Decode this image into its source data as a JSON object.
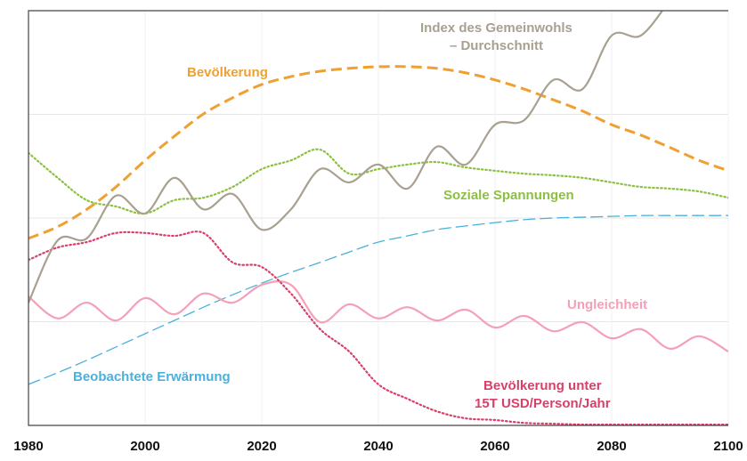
{
  "chart_data": {
    "type": "line",
    "x": [
      1980,
      1985,
      1990,
      1995,
      2000,
      2005,
      2010,
      2015,
      2020,
      2025,
      2030,
      2035,
      2040,
      2045,
      2050,
      2055,
      2060,
      2065,
      2070,
      2075,
      2080,
      2085,
      2090,
      2095,
      2100
    ],
    "xlim": [
      1980,
      2100
    ],
    "xticks": [
      1980,
      2000,
      2020,
      2040,
      2060,
      2080,
      2100
    ],
    "ylim": [
      0,
      100
    ],
    "yticks": [
      25,
      50,
      75
    ],
    "grid": true,
    "series": [
      {
        "name": "Bevölkerung",
        "color": "#f0a030",
        "style": "dashed",
        "values": [
          45.1,
          47.9,
          52.1,
          57.5,
          63.9,
          69.7,
          75.1,
          79.0,
          82.2,
          84.1,
          85.4,
          86.1,
          86.5,
          86.5,
          86.1,
          85.0,
          83.3,
          81.1,
          78.5,
          75.8,
          72.5,
          70.0,
          67.0,
          63.9,
          61.4
        ]
      },
      {
        "name": "Beobachtete Erwärmung",
        "color": "#4ab0dc",
        "style": "longdash",
        "values": [
          9.9,
          12.7,
          15.7,
          18.9,
          22.1,
          25.3,
          28.5,
          31.5,
          34.3,
          36.9,
          39.3,
          41.8,
          44.2,
          45.7,
          47.2,
          48.1,
          48.9,
          49.6,
          50.0,
          50.2,
          50.4,
          50.6,
          50.6,
          50.6,
          50.6
        ]
      },
      {
        "name": "Ungleichheit",
        "color": "#f4a0b8",
        "style": "solid",
        "values": [
          31.1,
          25.8,
          29.6,
          25.3,
          30.7,
          26.8,
          31.8,
          29.6,
          33.9,
          33.9,
          24.9,
          29.2,
          25.8,
          28.5,
          25.3,
          27.9,
          23.6,
          26.4,
          22.7,
          24.9,
          21.0,
          23.2,
          18.5,
          21.5,
          17.8
        ]
      },
      {
        "name": "Bevölkerung unter\n15T USD/Person/Jahr",
        "color": "#d8406a",
        "style": "dotted",
        "values": [
          39.9,
          42.9,
          44.2,
          46.4,
          46.4,
          45.7,
          46.4,
          39.3,
          38.2,
          31.8,
          23.2,
          17.8,
          9.9,
          6.4,
          3.4,
          1.7,
          1.3,
          0.6,
          0.4,
          0.2,
          0.2,
          0.2,
          0.2,
          0.2,
          0.2
        ]
      },
      {
        "name": "Soziale Spannungen",
        "color": "#8cc040",
        "style": "dotted",
        "values": [
          65.7,
          59.7,
          54.3,
          52.8,
          51.1,
          54.3,
          54.9,
          57.5,
          61.8,
          63.9,
          66.5,
          60.7,
          61.8,
          62.9,
          63.5,
          62.2,
          61.4,
          60.7,
          60.3,
          59.7,
          58.6,
          57.5,
          57.1,
          56.4,
          54.9
        ]
      },
      {
        "name": "Index des Gemeinwohls\n– Durchschnitt",
        "color": "#a8a090",
        "style": "solid",
        "values": [
          29.6,
          44.6,
          45.1,
          55.4,
          51.1,
          59.7,
          52.1,
          55.8,
          47.2,
          52.1,
          61.8,
          58.6,
          62.9,
          57.1,
          67.2,
          62.9,
          72.5,
          73.6,
          83.3,
          81.1,
          94.0,
          94.0,
          102.6,
          null,
          null
        ]
      }
    ]
  }
}
